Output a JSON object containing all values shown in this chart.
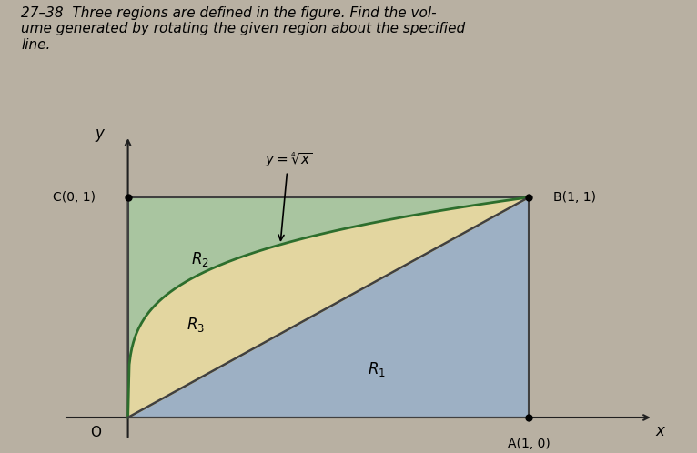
{
  "title_text": "27–38  Three regions are defined in the figure. Find the vol-\nume generated by rotating the given region about the specified\nline.",
  "points": {
    "A": [
      1,
      0
    ],
    "B": [
      1,
      1
    ],
    "C": [
      0,
      1
    ],
    "O": [
      0,
      0
    ]
  },
  "point_labels": {
    "A": "A(1, 0)",
    "B": "B(1, 1)",
    "C": "C(0, 1)",
    "O": "O"
  },
  "region_labels": {
    "R1": [
      0.62,
      0.22
    ],
    "R2": [
      0.18,
      0.72
    ],
    "R3": [
      0.17,
      0.42
    ]
  },
  "colors": {
    "R1": "#9ab0c8",
    "R2": "#a8c8a0",
    "R3": "#e8dba0",
    "curve": "#2d6e2d",
    "diagonal": "#404040",
    "square_border": "#404040",
    "axes": "#202020",
    "background": "#c8c0b0",
    "title_bg": "#c8c0b0",
    "fig_bg": "#b8b0a2"
  },
  "xlim": [
    -0.18,
    1.35
  ],
  "ylim": [
    -0.12,
    1.32
  ]
}
